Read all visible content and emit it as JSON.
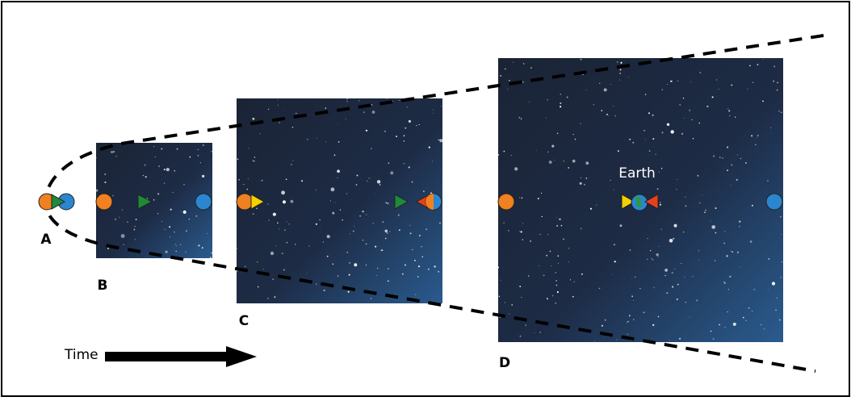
{
  "labels": {
    "a": "A",
    "b": "B",
    "c": "C",
    "d": "D"
  },
  "earth": "Earth",
  "time": "Time"
}
